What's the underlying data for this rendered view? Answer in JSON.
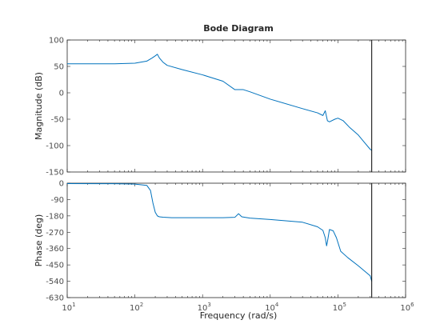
{
  "chart_data": {
    "type": "line",
    "title": "Bode Diagram",
    "xlabel": "Frequency  (rad/s)",
    "x_scale": "log",
    "xlim": [
      10,
      1000000
    ],
    "x_ticks": [
      10,
      100,
      1000,
      10000,
      100000,
      1000000
    ],
    "x_tick_labels": [
      {
        "base": "10",
        "exp": "1"
      },
      {
        "base": "10",
        "exp": "2"
      },
      {
        "base": "10",
        "exp": "3"
      },
      {
        "base": "10",
        "exp": "4"
      },
      {
        "base": "10",
        "exp": "5"
      },
      {
        "base": "10",
        "exp": "6"
      }
    ],
    "vertical_marker_x": 316000,
    "line_color": "#0072bd",
    "panels": [
      {
        "ylabel": "Magnitude (dB)",
        "ylim": [
          -150,
          100
        ],
        "y_ticks": [
          100,
          50,
          0,
          -50,
          -100,
          -150
        ],
        "y_tick_labels": [
          "100",
          "50",
          "0",
          "-50",
          "-100",
          "-150"
        ],
        "series": [
          {
            "x": [
              10,
              50,
              100,
              150,
              180,
              200,
              215,
              230,
              260,
              300,
              500,
              1000,
              2000,
              3000,
              4000,
              5000,
              10000,
              30000,
              50000,
              60000,
              65000,
              70000,
              75000,
              90000,
              100000,
              120000,
              150000,
              200000,
              250000,
              300000,
              316000
            ],
            "y": [
              55,
              55,
              56,
              60,
              66,
              70,
              73,
              66,
              58,
              52,
              44,
              34,
              22,
              6,
              6,
              2,
              -12,
              -30,
              -38,
              -43,
              -34,
              -53,
              -55,
              -50,
              -48,
              -53,
              -66,
              -80,
              -95,
              -107,
              -109
            ]
          }
        ]
      },
      {
        "ylabel": "Phase (deg)",
        "ylim": [
          -630,
          0
        ],
        "y_ticks": [
          0,
          -90,
          -180,
          -270,
          -360,
          -450,
          -540,
          -630
        ],
        "y_tick_labels": [
          "0",
          "-90",
          "-180",
          "-270",
          "-360",
          "-450",
          "-540",
          "-630"
        ],
        "series": [
          {
            "x": [
              10,
              50,
              100,
              150,
              170,
              185,
              200,
              215,
              230,
              260,
              350,
              1000,
              2000,
              3000,
              3400,
              3800,
              5000,
              10000,
              30000,
              50000,
              60000,
              65000,
              68000,
              70000,
              75000,
              85000,
              95000,
              110000,
              140000,
              200000,
              300000,
              316000
            ],
            "y": [
              -2,
              -3,
              -5,
              -12,
              -40,
              -110,
              -160,
              -180,
              -185,
              -187,
              -190,
              -190,
              -190,
              -188,
              -168,
              -185,
              -192,
              -200,
              -215,
              -240,
              -260,
              -300,
              -345,
              -322,
              -255,
              -262,
              -300,
              -375,
              -410,
              -455,
              -510,
              -540
            ]
          }
        ]
      }
    ]
  }
}
